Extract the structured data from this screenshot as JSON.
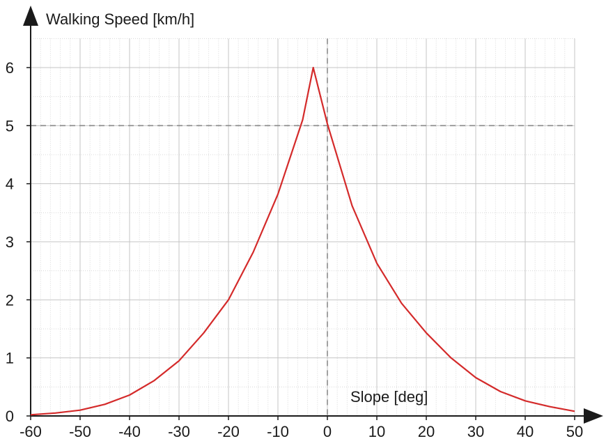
{
  "chart_data": {
    "type": "line",
    "xlabel": "Slope [deg]",
    "ylabel": "Walking Speed [km/h]",
    "xlim": [
      -60,
      50
    ],
    "ylim": [
      0,
      6.5
    ],
    "x_ticks": [
      -60,
      -50,
      -40,
      -30,
      -20,
      -10,
      0,
      10,
      20,
      30,
      40,
      50
    ],
    "y_ticks": [
      0,
      1,
      2,
      3,
      4,
      5,
      6
    ],
    "grid": true,
    "minor_grid_step": 2,
    "reference_lines": [
      {
        "axis": "x",
        "value": 0,
        "style": "dashed"
      },
      {
        "axis": "y",
        "value": 5,
        "style": "dashed"
      }
    ],
    "series": [
      {
        "color": "#d42a2a",
        "x": [
          -60,
          -55,
          -50,
          -45,
          -40,
          -35,
          -30,
          -25,
          -20,
          -15,
          -10,
          -5,
          -2.86,
          0,
          5,
          10,
          15,
          20,
          25,
          30,
          35,
          40,
          45,
          50
        ],
        "y": [
          0.02,
          0.05,
          0.1,
          0.2,
          0.36,
          0.61,
          0.95,
          1.43,
          2.0,
          2.82,
          3.82,
          5.1,
          6.0,
          5.03,
          3.62,
          2.63,
          1.94,
          1.43,
          1.0,
          0.66,
          0.42,
          0.26,
          0.16,
          0.08
        ]
      }
    ]
  }
}
